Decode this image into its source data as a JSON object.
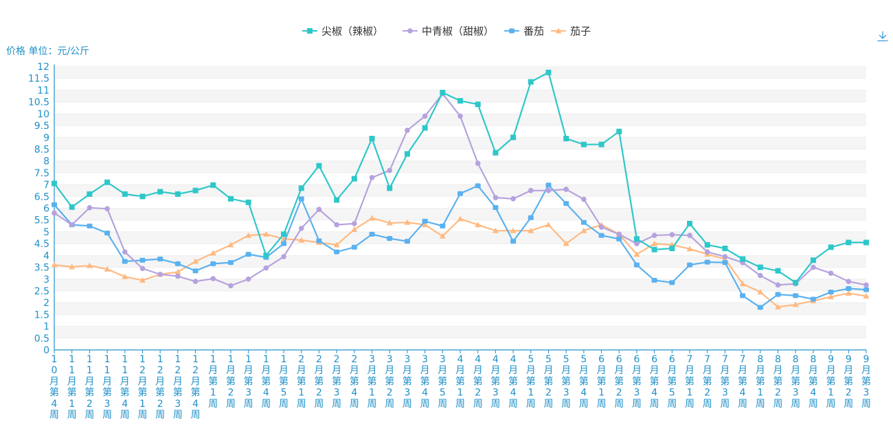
{
  "chart_data": {
    "type": "line",
    "ylabel": "价格 单位：元/公斤",
    "ylim": [
      0,
      12
    ],
    "y_ticks": [
      "0",
      "0.5",
      "1",
      "1.5",
      "2",
      "2.5",
      "3",
      "3.5",
      "4",
      "4.5",
      "5",
      "5.5",
      "6",
      "6.5",
      "7",
      "7.5",
      "8",
      "8.5",
      "9",
      "9.5",
      "10",
      "10.5",
      "11",
      "11.5",
      "12"
    ],
    "grid": true,
    "legend_position": "top-center",
    "categories": [
      "10月第4周",
      "11月第1周",
      "11月第2周",
      "11月第3周",
      "11月第4周",
      "12月第1周",
      "12月第2周",
      "12月第3周",
      "12月第4周",
      "1月第1周",
      "1月第2周",
      "1月第3周",
      "1月第4周",
      "1月第5周",
      "2月第1周",
      "2月第2周",
      "2月第3周",
      "2月第4周",
      "3月第1周",
      "3月第2周",
      "3月第3周",
      "3月第4周",
      "3月第5周",
      "4月第1周",
      "4月第2周",
      "4月第3周",
      "4月第4周",
      "5月第1周",
      "5月第2周",
      "5月第3周",
      "5月第4周",
      "6月第1周",
      "6月第2周",
      "6月第3周",
      "6月第4周",
      "6月第5周",
      "7月第1周",
      "7月第2周",
      "7月第3周",
      "7月第4周",
      "8月第1周",
      "8月第2周",
      "8月第3周",
      "8月第4周",
      "9月第1周",
      "9月第2周",
      "9月第3周"
    ],
    "series": [
      {
        "name": "尖椒（辣椒）",
        "color": "#2ec7c9",
        "marker": "square",
        "values": [
          7.05,
          6.05,
          6.6,
          7.1,
          6.6,
          6.5,
          6.7,
          6.6,
          6.75,
          6.98,
          6.4,
          6.25,
          4.0,
          4.9,
          6.85,
          7.8,
          6.35,
          7.25,
          8.95,
          6.85,
          8.3,
          9.4,
          10.9,
          10.55,
          10.4,
          8.35,
          9.0,
          11.35,
          11.75,
          8.95,
          8.7,
          8.7,
          9.25,
          4.7,
          4.25,
          4.3,
          5.35,
          4.45,
          4.3,
          3.85,
          3.5,
          3.35,
          2.85,
          3.8,
          4.35,
          4.55,
          4.55
        ]
      },
      {
        "name": "中青椒（甜椒）",
        "color": "#b6a2de",
        "marker": "circle",
        "values": [
          5.8,
          5.3,
          6.02,
          5.98,
          4.15,
          3.45,
          3.2,
          3.12,
          2.9,
          3.02,
          2.72,
          3.0,
          3.47,
          3.95,
          5.15,
          5.95,
          5.3,
          5.35,
          7.3,
          7.6,
          9.3,
          9.9,
          10.85,
          9.9,
          7.9,
          6.45,
          6.4,
          6.75,
          6.75,
          6.8,
          6.38,
          5.2,
          4.9,
          4.5,
          4.85,
          4.88,
          4.85,
          4.15,
          3.95,
          3.7,
          3.15,
          2.75,
          2.8,
          3.5,
          3.25,
          2.9,
          2.75
        ]
      },
      {
        "name": "番茄",
        "color": "#5ab1ef",
        "marker": "rect",
        "values": [
          6.15,
          5.3,
          5.25,
          4.95,
          3.75,
          3.8,
          3.85,
          3.65,
          3.35,
          3.65,
          3.7,
          4.05,
          3.92,
          4.5,
          6.4,
          4.62,
          4.15,
          4.35,
          4.9,
          4.72,
          4.6,
          5.45,
          5.25,
          6.62,
          6.95,
          6.03,
          4.6,
          5.6,
          6.98,
          6.2,
          5.4,
          4.85,
          4.7,
          3.6,
          2.95,
          2.85,
          3.6,
          3.72,
          3.7,
          2.3,
          1.8,
          2.35,
          2.3,
          2.15,
          2.45,
          2.6,
          2.55
        ]
      },
      {
        "name": "茄子",
        "color": "#ffb980",
        "marker": "triangle",
        "values": [
          3.6,
          3.52,
          3.57,
          3.42,
          3.1,
          2.95,
          3.2,
          3.3,
          3.75,
          4.1,
          4.45,
          4.85,
          4.9,
          4.7,
          4.65,
          4.55,
          4.45,
          5.1,
          5.58,
          5.38,
          5.4,
          5.3,
          4.82,
          5.55,
          5.3,
          5.05,
          5.05,
          5.05,
          5.3,
          4.5,
          5.05,
          5.3,
          4.9,
          4.05,
          4.5,
          4.45,
          4.28,
          4.05,
          3.85,
          2.8,
          2.45,
          1.82,
          1.92,
          2.08,
          2.25,
          2.4,
          2.28
        ]
      }
    ]
  }
}
